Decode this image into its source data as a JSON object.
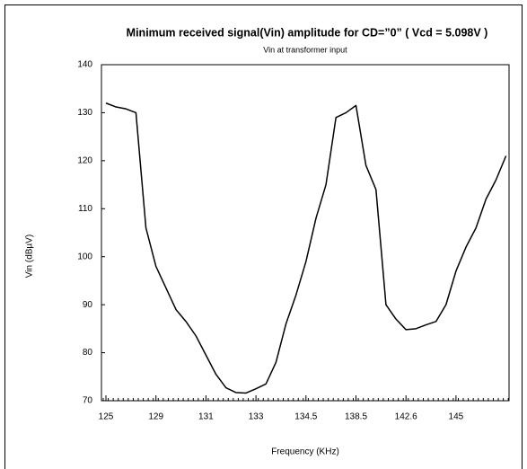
{
  "chart_data": {
    "type": "line",
    "title": "Minimum received signal(Vin) amplitude for CD=”0” ( Vcd = 5.098V )",
    "subtitle": "Vin at transformer input",
    "x_label": "Frequency (KHz)",
    "y_label": "Vin (dBµV)",
    "categories": [
      "125",
      null,
      null,
      null,
      null,
      "129",
      null,
      null,
      null,
      null,
      "131",
      null,
      null,
      null,
      null,
      "133",
      null,
      null,
      null,
      null,
      "134.5",
      null,
      null,
      null,
      null,
      "138.5",
      null,
      null,
      null,
      null,
      "142.6",
      null,
      null,
      null,
      null,
      "145",
      null,
      null,
      null,
      null,
      null
    ],
    "series": [
      {
        "name": "Vin",
        "color": "#000000",
        "values": [
          132,
          131.2,
          130.8,
          130,
          106,
          98,
          93.5,
          89,
          86.5,
          83.5,
          79.5,
          75.5,
          72.7,
          71.7,
          71.6,
          72.5,
          73.5,
          78,
          86,
          92,
          99,
          108,
          115,
          129,
          130,
          131.5,
          119,
          114,
          90,
          87,
          84.8,
          85,
          85.8,
          86.5,
          90,
          97,
          102,
          106,
          112,
          116,
          121
        ]
      }
    ],
    "ylim": [
      70,
      140
    ],
    "yticks": [
      70,
      80,
      90,
      100,
      110,
      120,
      130,
      140
    ],
    "grid": false
  }
}
